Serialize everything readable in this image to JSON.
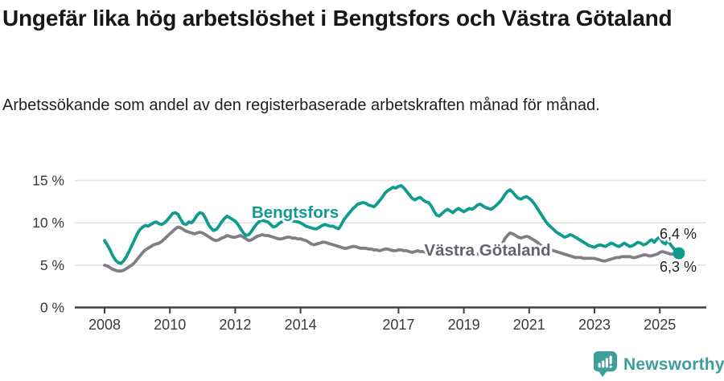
{
  "header": {
    "title": "Ungefär lika hög arbetslöshet i Bengtsfors och Västra Götaland",
    "subtitle": "Arbetssökande som andel av den registerbaserade arbetskraften månad för månad."
  },
  "chart_data": {
    "type": "line",
    "title": "Ungefär lika hög arbetslöshet i Bengtsfors och Västra Götaland",
    "subtitle": "Arbetssökande som andel av den registerbaserade arbetskraften månad för månad.",
    "grid": true,
    "legend_position": "inline-labels",
    "x_axis": {
      "frequency": "monthly",
      "start_year": 2008,
      "start_month": 1,
      "end_year": 2025,
      "end_month": 8,
      "tick_years": [
        2008,
        2010,
        2012,
        2014,
        2017,
        2019,
        2021,
        2023,
        2025
      ],
      "tick_labels": [
        "2008",
        "2010",
        "2012",
        "2014",
        "2017",
        "2019",
        "2021",
        "2023",
        "2025"
      ]
    },
    "y_axis": {
      "unit": "%",
      "range": [
        0,
        16
      ],
      "ticks": [
        0,
        5,
        10,
        15
      ],
      "tick_labels": [
        "0 %",
        "5 %",
        "10 %",
        "15 %"
      ]
    },
    "series": [
      {
        "name": "Bengtsfors",
        "color": "#0f9b8e",
        "end_label": "6,4 %",
        "end_dot": true,
        "values": [
          7.9,
          7.4,
          6.8,
          6.1,
          5.6,
          5.3,
          5.2,
          5.5,
          6.0,
          6.6,
          7.3,
          8.0,
          8.7,
          9.2,
          9.5,
          9.7,
          9.6,
          9.8,
          10.0,
          10.1,
          9.9,
          9.8,
          10.0,
          10.3,
          10.7,
          11.1,
          11.2,
          11.0,
          10.4,
          9.9,
          9.8,
          10.1,
          10.0,
          10.4,
          10.9,
          11.2,
          11.1,
          10.6,
          9.9,
          9.4,
          9.1,
          9.2,
          9.6,
          10.1,
          10.5,
          10.8,
          10.6,
          10.4,
          10.2,
          9.8,
          9.3,
          8.8,
          8.5,
          8.6,
          9.0,
          9.5,
          9.9,
          10.2,
          10.3,
          10.2,
          10.1,
          9.8,
          9.5,
          9.6,
          9.9,
          10.1,
          10.3,
          10.4,
          10.3,
          10.2,
          10.2,
          10.1,
          10.0,
          9.8,
          9.6,
          9.5,
          9.4,
          9.3,
          9.3,
          9.5,
          9.7,
          9.8,
          9.7,
          9.6,
          9.6,
          9.4,
          9.3,
          9.8,
          10.4,
          10.8,
          11.2,
          11.6,
          11.9,
          12.2,
          12.3,
          12.4,
          12.3,
          12.1,
          12.0,
          11.9,
          12.2,
          12.6,
          13.0,
          13.5,
          13.8,
          14.0,
          14.2,
          14.1,
          14.3,
          14.4,
          14.1,
          13.7,
          13.3,
          12.9,
          12.7,
          12.9,
          13.0,
          12.7,
          12.5,
          12.4,
          12.0,
          11.4,
          10.9,
          10.8,
          11.1,
          11.4,
          11.6,
          11.4,
          11.2,
          11.5,
          11.7,
          11.5,
          11.3,
          11.5,
          11.7,
          11.6,
          11.8,
          12.1,
          12.2,
          12.0,
          11.8,
          11.7,
          11.6,
          11.8,
          12.1,
          12.4,
          12.8,
          13.3,
          13.7,
          13.9,
          13.6,
          13.2,
          12.9,
          12.8,
          13.0,
          13.1,
          12.9,
          12.6,
          12.2,
          11.7,
          11.2,
          10.7,
          10.2,
          9.8,
          9.5,
          9.2,
          8.9,
          8.7,
          8.5,
          8.3,
          8.4,
          8.6,
          8.5,
          8.3,
          8.1,
          7.9,
          7.7,
          7.5,
          7.3,
          7.2,
          7.1,
          7.3,
          7.4,
          7.3,
          7.2,
          7.4,
          7.6,
          7.5,
          7.3,
          7.2,
          7.4,
          7.6,
          7.4,
          7.2,
          7.3,
          7.5,
          7.7,
          7.6,
          7.4,
          7.5,
          7.8,
          8.0,
          7.7,
          8.1,
          8.3,
          7.7,
          7.5,
          7.9,
          7.4,
          7.0,
          6.7,
          6.4
        ]
      },
      {
        "name": "Västra Götaland",
        "color": "#7e7e84",
        "end_label": "6,3 %",
        "end_dot": false,
        "values": [
          5.0,
          4.9,
          4.7,
          4.5,
          4.4,
          4.3,
          4.3,
          4.4,
          4.6,
          4.8,
          5.0,
          5.3,
          5.7,
          6.1,
          6.5,
          6.8,
          7.0,
          7.2,
          7.4,
          7.5,
          7.6,
          7.8,
          8.1,
          8.4,
          8.7,
          9.0,
          9.3,
          9.5,
          9.4,
          9.2,
          9.0,
          8.9,
          8.8,
          8.7,
          8.8,
          8.9,
          8.8,
          8.6,
          8.4,
          8.2,
          8.0,
          7.9,
          8.0,
          8.2,
          8.3,
          8.5,
          8.4,
          8.3,
          8.3,
          8.4,
          8.5,
          8.3,
          8.1,
          7.9,
          8.0,
          8.2,
          8.4,
          8.5,
          8.6,
          8.5,
          8.5,
          8.4,
          8.3,
          8.2,
          8.1,
          8.1,
          8.2,
          8.3,
          8.3,
          8.2,
          8.2,
          8.1,
          8.1,
          8.0,
          7.9,
          7.7,
          7.5,
          7.4,
          7.5,
          7.6,
          7.7,
          7.7,
          7.6,
          7.5,
          7.4,
          7.3,
          7.2,
          7.1,
          7.0,
          7.0,
          7.1,
          7.2,
          7.2,
          7.1,
          7.0,
          7.0,
          7.0,
          6.9,
          6.9,
          6.8,
          6.8,
          6.7,
          6.8,
          6.9,
          6.9,
          6.8,
          6.7,
          6.7,
          6.8,
          6.8,
          6.7,
          6.7,
          6.6,
          6.5,
          6.6,
          6.7,
          6.6,
          6.6,
          6.5,
          6.5,
          6.5,
          6.4,
          6.3,
          6.3,
          6.2,
          6.2,
          6.3,
          6.4,
          6.4,
          6.3,
          6.3,
          6.3,
          6.4,
          6.4,
          6.3,
          6.3,
          6.2,
          6.3,
          6.4,
          6.5,
          6.5,
          6.4,
          6.4,
          6.5,
          6.7,
          6.9,
          7.4,
          8.1,
          8.5,
          8.8,
          8.7,
          8.5,
          8.3,
          8.2,
          8.3,
          8.4,
          8.3,
          8.1,
          7.9,
          7.7,
          7.4,
          7.2,
          7.0,
          6.9,
          6.8,
          6.7,
          6.6,
          6.5,
          6.4,
          6.3,
          6.2,
          6.1,
          6.0,
          5.9,
          5.9,
          5.9,
          5.8,
          5.8,
          5.8,
          5.8,
          5.8,
          5.7,
          5.6,
          5.5,
          5.5,
          5.6,
          5.7,
          5.8,
          5.9,
          5.9,
          6.0,
          6.0,
          6.0,
          6.0,
          5.9,
          5.9,
          6.0,
          6.1,
          6.2,
          6.2,
          6.1,
          6.1,
          6.2,
          6.3,
          6.5,
          6.6,
          6.5,
          6.4,
          6.3,
          6.3,
          6.3,
          6.3
        ]
      }
    ]
  },
  "footer": {
    "brand": "Newsworthy",
    "brand_color": "#3e9e99",
    "logo_icon": "newsworthy-speech-bubble-bar-chart-icon"
  },
  "colors": {
    "grid": "#e2e2e2",
    "axis": "#3f3f3f",
    "axis_text": "#3a3a3a",
    "end_label_text": "#1f1f1f",
    "title_text": "#17171a"
  }
}
